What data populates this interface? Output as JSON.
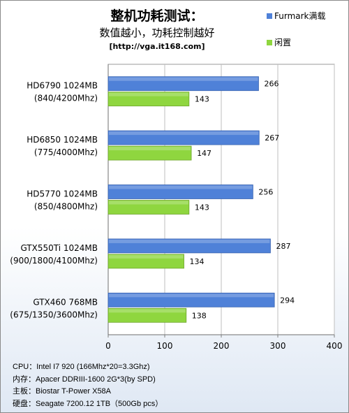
{
  "header": {
    "title": "整机功耗测试：",
    "subtitle": "数值越小，功耗控制越好",
    "source": "[http://vga.it168.com]"
  },
  "colors": {
    "furmark": "#4f81d8",
    "idle": "#8fd63f"
  },
  "chart_data": {
    "type": "bar",
    "orientation": "horizontal",
    "title": "整机功耗测试：",
    "subtitle": "数值越小，功耗控制越好",
    "categories": [
      [
        "HD6790 1024MB",
        "(840/4200Mhz)"
      ],
      [
        "HD6850 1024MB",
        "(775/4000Mhz)"
      ],
      [
        "HD5770 1024MB",
        "(850/4800Mhz)"
      ],
      [
        "GTX550Ti 1024MB",
        "(900/1800/4100Mhz)"
      ],
      [
        "GTX460 768MB",
        "(675/1350/3600Mhz)"
      ]
    ],
    "series": [
      {
        "name": "Furmark满载",
        "values": [
          266,
          267,
          256,
          287,
          294
        ],
        "color": "#4f81d8"
      },
      {
        "name": "闲置",
        "values": [
          143,
          147,
          143,
          134,
          138
        ],
        "color": "#8fd63f"
      }
    ],
    "xlim": [
      0,
      400
    ],
    "xticks": [
      0,
      100,
      200,
      300,
      400
    ],
    "grid": true,
    "legend_position": "top-right"
  },
  "specs": [
    {
      "label": "CPU：",
      "value": "Intel I7 920 (166Mhz*20=3.3Ghz)"
    },
    {
      "label": "内存：",
      "value": "Apacer DDRIII-1600 2G*3(by SPD)"
    },
    {
      "label": "主板：",
      "value": "Biostar T-Power X58A"
    },
    {
      "label": "硬盘：",
      "value": "Seagate 7200.12 1TB（500Gb pcs）"
    }
  ]
}
